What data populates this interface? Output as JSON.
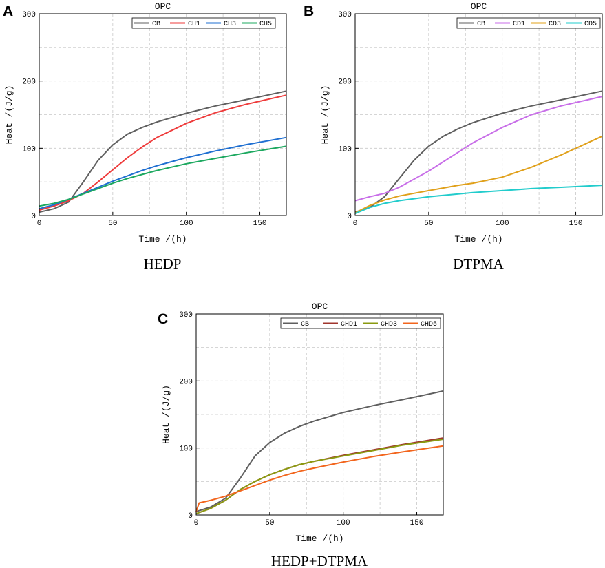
{
  "chart_data": [
    {
      "panel_letter": "A",
      "type": "line",
      "title": "OPC",
      "xlabel": "Time /(h)",
      "ylabel": "Heat /(J/g)",
      "xlim": [
        0,
        168
      ],
      "ylim": [
        0,
        300
      ],
      "xticks": [
        0,
        50,
        100,
        150
      ],
      "yticks": [
        0,
        100,
        200,
        300
      ],
      "grid": true,
      "legend_position": "top-right",
      "caption": "HEDP",
      "series": [
        {
          "name": "CB",
          "color": "#5f5f5f",
          "x": [
            0,
            10,
            20,
            30,
            40,
            50,
            60,
            70,
            80,
            100,
            120,
            140,
            168
          ],
          "y": [
            5,
            10,
            20,
            50,
            82,
            105,
            121,
            131,
            139,
            152,
            163,
            172,
            185
          ]
        },
        {
          "name": "CH1",
          "color": "#ee3b3b",
          "x": [
            0,
            10,
            20,
            30,
            40,
            50,
            60,
            70,
            80,
            100,
            120,
            140,
            168
          ],
          "y": [
            8,
            14,
            22,
            33,
            50,
            68,
            86,
            102,
            116,
            137,
            153,
            165,
            179
          ]
        },
        {
          "name": "CH3",
          "color": "#1f6fd1",
          "x": [
            0,
            10,
            20,
            30,
            40,
            50,
            60,
            70,
            80,
            100,
            120,
            140,
            168
          ],
          "y": [
            10,
            16,
            24,
            33,
            42,
            51,
            59,
            67,
            74,
            86,
            96,
            105,
            116
          ]
        },
        {
          "name": "CH5",
          "color": "#1ca85f",
          "x": [
            0,
            10,
            20,
            30,
            40,
            50,
            60,
            70,
            80,
            100,
            120,
            140,
            168
          ],
          "y": [
            14,
            18,
            24,
            32,
            40,
            48,
            55,
            61,
            67,
            77,
            85,
            93,
            103
          ]
        }
      ]
    },
    {
      "panel_letter": "B",
      "type": "line",
      "title": "OPC",
      "xlabel": "Time /(h)",
      "ylabel": "Heat /(J/g)",
      "xlim": [
        0,
        168
      ],
      "ylim": [
        0,
        300
      ],
      "xticks": [
        0,
        50,
        100,
        150
      ],
      "yticks": [
        0,
        100,
        200,
        300
      ],
      "grid": true,
      "legend_position": "top-right",
      "caption": "DTPMA",
      "series": [
        {
          "name": "CB",
          "color": "#5f5f5f",
          "x": [
            0,
            10,
            20,
            30,
            40,
            50,
            60,
            70,
            80,
            100,
            120,
            140,
            168
          ],
          "y": [
            5,
            12,
            28,
            55,
            82,
            103,
            118,
            129,
            138,
            152,
            163,
            172,
            185
          ]
        },
        {
          "name": "CD1",
          "color": "#c86ee8",
          "x": [
            0,
            10,
            20,
            30,
            40,
            50,
            60,
            70,
            80,
            100,
            120,
            140,
            168
          ],
          "y": [
            22,
            28,
            33,
            42,
            54,
            66,
            80,
            94,
            108,
            131,
            150,
            163,
            177
          ]
        },
        {
          "name": "CD3",
          "color": "#e0a01a",
          "x": [
            0,
            10,
            20,
            30,
            40,
            50,
            60,
            70,
            80,
            100,
            120,
            140,
            168
          ],
          "y": [
            4,
            15,
            23,
            29,
            33,
            37,
            41,
            45,
            48,
            57,
            72,
            90,
            118
          ]
        },
        {
          "name": "CD5",
          "color": "#22cccc",
          "x": [
            0,
            10,
            20,
            30,
            40,
            50,
            60,
            70,
            80,
            100,
            120,
            140,
            168
          ],
          "y": [
            3,
            12,
            18,
            22,
            25,
            28,
            30,
            32,
            34,
            37,
            40,
            42,
            45
          ]
        }
      ]
    },
    {
      "panel_letter": "C",
      "type": "line",
      "title": "OPC",
      "xlabel": "Time /(h)",
      "ylabel": "Heat /(J/g)",
      "xlim": [
        0,
        168
      ],
      "ylim": [
        0,
        300
      ],
      "xticks": [
        0,
        50,
        100,
        150
      ],
      "yticks": [
        0,
        100,
        200,
        300
      ],
      "grid": true,
      "legend_position": "top-right",
      "caption": "HEDP+DTPMA",
      "series": [
        {
          "name": "CB",
          "color": "#5f5f5f",
          "x": [
            0,
            10,
            20,
            30,
            40,
            50,
            60,
            70,
            80,
            100,
            120,
            140,
            168
          ],
          "y": [
            5,
            12,
            25,
            55,
            88,
            108,
            122,
            132,
            140,
            153,
            163,
            172,
            185
          ]
        },
        {
          "name": "CHD1",
          "color": "#a0362e",
          "x": [
            0,
            10,
            20,
            30,
            40,
            50,
            60,
            70,
            80,
            100,
            120,
            140,
            168
          ],
          "y": [
            2,
            10,
            22,
            38,
            50,
            60,
            68,
            75,
            80,
            89,
            97,
            105,
            115
          ]
        },
        {
          "name": "CHD3",
          "color": "#8a9a10",
          "x": [
            0,
            10,
            20,
            30,
            40,
            50,
            60,
            70,
            80,
            100,
            120,
            140,
            168
          ],
          "y": [
            2,
            10,
            22,
            38,
            50,
            60,
            68,
            75,
            80,
            88,
            96,
            104,
            113
          ]
        },
        {
          "name": "CHD5",
          "color": "#f2651d",
          "x": [
            0,
            2,
            10,
            20,
            30,
            40,
            50,
            60,
            70,
            80,
            100,
            120,
            140,
            168
          ],
          "y": [
            5,
            18,
            22,
            28,
            36,
            44,
            52,
            59,
            65,
            70,
            79,
            87,
            94,
            103
          ]
        }
      ]
    }
  ]
}
